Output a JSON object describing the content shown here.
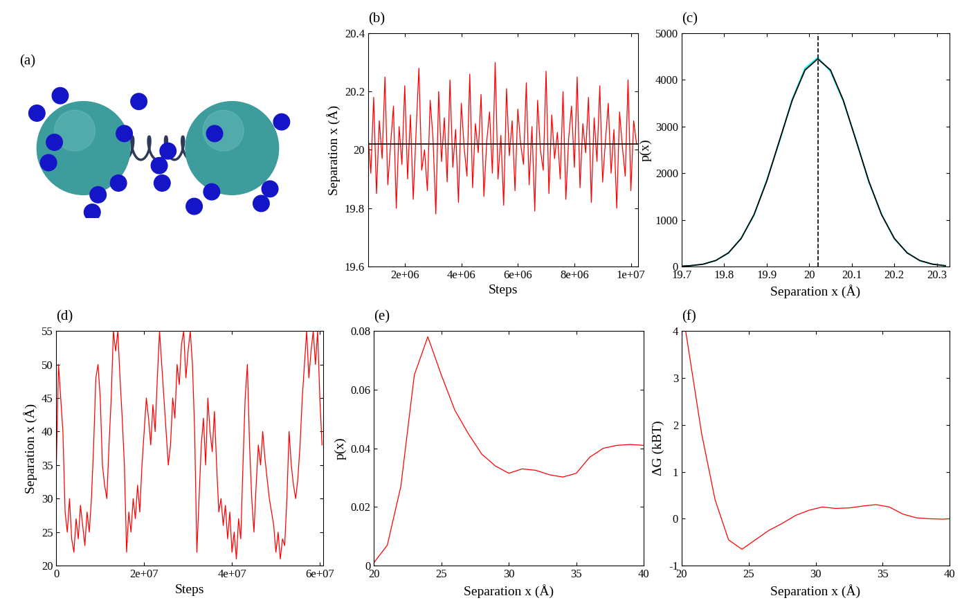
{
  "chart_data": [
    {
      "type": "diagram",
      "title": "(a)"
    },
    {
      "type": "line",
      "title": "(b)",
      "x_label": "Steps",
      "y_label": "Separation x (Å)",
      "xlim": [
        700000,
        10250000
      ],
      "xticks": [
        {
          "value": 2000000,
          "label": "2e+06"
        },
        {
          "value": 4000000,
          "label": "4e+06"
        },
        {
          "value": 6000000,
          "label": "6e+06"
        },
        {
          "value": 8000000,
          "label": "8e+06"
        },
        {
          "value": 10000000,
          "label": "1e+07"
        }
      ],
      "ylim": [
        19.6,
        20.4
      ],
      "yticks": [
        19.6,
        19.8,
        20,
        20.2,
        20.4
      ],
      "hline": 20.02,
      "color": "#ff0000",
      "x": [
        700000,
        800000,
        900000,
        1000000,
        1100000,
        1200000,
        1300000,
        1400000,
        1500000,
        1600000,
        1700000,
        1800000,
        1900000,
        2000000,
        2100000,
        2200000,
        2300000,
        2400000,
        2500000,
        2600000,
        2700000,
        2800000,
        2900000,
        3000000,
        3100000,
        3200000,
        3300000,
        3400000,
        3500000,
        3600000,
        3700000,
        3800000,
        3900000,
        4000000,
        4100000,
        4200000,
        4300000,
        4400000,
        4500000,
        4600000,
        4700000,
        4800000,
        4900000,
        5000000,
        5100000,
        5200000,
        5300000,
        5400000,
        5500000,
        5600000,
        5700000,
        5800000,
        5900000,
        6000000,
        6100000,
        6200000,
        6300000,
        6400000,
        6500000,
        6600000,
        6700000,
        6800000,
        6900000,
        7000000,
        7100000,
        7200000,
        7300000,
        7400000,
        7500000,
        7600000,
        7700000,
        7800000,
        7900000,
        8000000,
        8100000,
        8200000,
        8300000,
        8400000,
        8500000,
        8600000,
        8700000,
        8800000,
        8900000,
        9000000,
        9100000,
        9200000,
        9300000,
        9400000,
        9500000,
        9600000,
        9700000,
        9800000,
        9900000,
        10000000,
        10100000,
        10200000
      ],
      "values": [
        20.05,
        19.92,
        20.18,
        19.85,
        20.1,
        19.97,
        20.25,
        19.88,
        20.02,
        20.15,
        19.8,
        20.08,
        19.95,
        20.22,
        19.9,
        20.12,
        19.83,
        20.06,
        20.28,
        19.93,
        20.0,
        19.86,
        20.17,
        20.04,
        19.78,
        20.2,
        19.96,
        20.11,
        19.89,
        20.24,
        19.94,
        20.07,
        19.82,
        20.16,
        20.01,
        19.91,
        20.26,
        19.87,
        20.09,
        19.99,
        20.19,
        19.84,
        20.03,
        20.13,
        19.92,
        20.3,
        19.9,
        20.05,
        19.81,
        20.21,
        19.98,
        20.1,
        19.86,
        20.14,
        20.02,
        19.95,
        20.23,
        19.88,
        20.08,
        19.79,
        20.17,
        20.0,
        19.93,
        20.27,
        19.85,
        20.12,
        19.97,
        20.06,
        19.9,
        20.2,
        19.83,
        20.04,
        20.15,
        19.94,
        20.25,
        19.87,
        20.09,
        19.99,
        20.18,
        19.82,
        20.11,
        19.96,
        20.22,
        19.89,
        20.03,
        20.16,
        19.92,
        20.07,
        19.8,
        20.13,
        20.01,
        19.91,
        20.24,
        19.86,
        20.1,
        20.02
      ]
    },
    {
      "type": "line",
      "title": "(c)",
      "x_label": "Separation x (Å)",
      "y_label": "p(x)",
      "xlim": [
        19.7,
        20.33
      ],
      "xticks": [
        19.7,
        19.8,
        19.9,
        20,
        20.1,
        20.2,
        20.3
      ],
      "ylim": [
        0,
        5000
      ],
      "yticks": [
        0,
        1000,
        2000,
        3000,
        4000,
        5000
      ],
      "vline": 20.02,
      "x": [
        19.7,
        19.72,
        19.75,
        19.78,
        19.81,
        19.84,
        19.87,
        19.9,
        19.93,
        19.96,
        19.99,
        20.02,
        20.05,
        20.08,
        20.11,
        20.14,
        20.17,
        20.2,
        20.23,
        20.26,
        20.29,
        20.32
      ],
      "series": [
        {
          "color": "#00ffff",
          "values": [
            6,
            19,
            45,
            131,
            288,
            610,
            1095,
            1850,
            2680,
            3590,
            4250,
            4480,
            4180,
            3540,
            2720,
            1810,
            1120,
            590,
            300,
            122,
            52,
            15
          ]
        },
        {
          "color": "#000000",
          "values": [
            7,
            17,
            49,
            127,
            292,
            602,
            1110,
            1829,
            2700,
            3564,
            4210,
            4450,
            4210,
            3564,
            2700,
            1829,
            1110,
            602,
            292,
            127,
            49,
            17
          ]
        }
      ]
    },
    {
      "type": "line",
      "title": "(d)",
      "x_label": "Steps",
      "y_label": "Separation x (Å)",
      "xlim": [
        0,
        60800000
      ],
      "xticks": [
        0,
        {
          "value": 20000000,
          "label": "2e+07"
        },
        {
          "value": 40000000,
          "label": "4e+07"
        },
        {
          "value": 60000000,
          "label": "6e+07"
        }
      ],
      "ylim": [
        20,
        55
      ],
      "yticks": [
        20,
        25,
        30,
        35,
        40,
        45,
        50,
        55
      ],
      "color": "#ff0000",
      "x": [
        0,
        500000,
        1000000,
        1500000,
        2000000,
        2500000,
        3000000,
        3500000,
        4000000,
        4500000,
        5000000,
        5500000,
        6000000,
        6500000,
        7000000,
        7500000,
        8000000,
        8500000,
        9000000,
        9500000,
        10000000,
        10500000,
        11000000,
        11500000,
        12000000,
        12500000,
        13000000,
        13500000,
        14000000,
        14500000,
        15000000,
        15500000,
        16000000,
        16500000,
        17000000,
        17500000,
        18000000,
        18500000,
        19000000,
        19500000,
        20000000,
        20500000,
        21000000,
        21500000,
        22000000,
        22500000,
        23000000,
        23500000,
        24000000,
        24500000,
        25000000,
        25500000,
        26000000,
        26500000,
        27000000,
        27500000,
        28000000,
        28500000,
        29000000,
        29500000,
        30000000,
        30500000,
        31000000,
        31500000,
        32000000,
        32500000,
        33000000,
        33500000,
        34000000,
        34500000,
        35000000,
        35500000,
        36000000,
        36500000,
        37000000,
        37500000,
        38000000,
        38500000,
        39000000,
        39500000,
        40000000,
        40500000,
        41000000,
        41500000,
        42000000,
        42500000,
        43000000,
        43500000,
        44000000,
        44500000,
        45000000,
        45500000,
        46000000,
        46500000,
        47000000,
        47500000,
        48000000,
        48500000,
        49000000,
        49500000,
        50000000,
        50500000,
        51000000,
        51500000,
        52000000,
        52500000,
        53000000,
        53500000,
        54000000,
        54500000,
        55000000,
        55500000,
        56000000,
        56500000,
        57000000,
        57500000,
        58000000,
        58500000,
        59000000,
        59500000,
        60000000,
        60500000
      ],
      "values": [
        35,
        50,
        45,
        40,
        28,
        25,
        30,
        24,
        22,
        27,
        24,
        29,
        26,
        23,
        28,
        25,
        30,
        38,
        48,
        50,
        45,
        35,
        32,
        30,
        38,
        45,
        55,
        52,
        55,
        48,
        42,
        35,
        22,
        28,
        25,
        30,
        27,
        32,
        28,
        35,
        40,
        45,
        42,
        38,
        44,
        40,
        48,
        55,
        50,
        45,
        40,
        35,
        38,
        45,
        42,
        50,
        47,
        53,
        55,
        48,
        52,
        55,
        50,
        40,
        22,
        30,
        38,
        42,
        35,
        45,
        40,
        37,
        43,
        35,
        28,
        30,
        26,
        29,
        24,
        28,
        22,
        25,
        21,
        27,
        24,
        35,
        45,
        50,
        38,
        30,
        25,
        32,
        38,
        35,
        40,
        36,
        33,
        30,
        28,
        26,
        22,
        25,
        21,
        24,
        23,
        30,
        40,
        35,
        32,
        30,
        33,
        38,
        45,
        50,
        55,
        48,
        52,
        55,
        50,
        55,
        45,
        38
      ]
    },
    {
      "type": "line",
      "title": "(e)",
      "x_label": "Separation x (Å)",
      "y_label": "p(x)",
      "xlim": [
        20,
        40
      ],
      "xticks": [
        20,
        25,
        30,
        35,
        40
      ],
      "ylim": [
        0,
        0.08
      ],
      "yticks": [
        0,
        0.02,
        0.04,
        0.06,
        0.08
      ],
      "color": "#ff0000",
      "x": [
        20,
        21,
        22,
        23,
        24,
        25,
        26,
        27,
        28,
        29,
        30,
        31,
        32,
        33,
        34,
        35,
        36,
        37,
        38,
        39,
        40
      ],
      "values": [
        0.001,
        0.007,
        0.027,
        0.065,
        0.078,
        0.065,
        0.053,
        0.045,
        0.038,
        0.034,
        0.0315,
        0.033,
        0.0325,
        0.031,
        0.0302,
        0.0315,
        0.037,
        0.04,
        0.041,
        0.0413,
        0.041
      ]
    },
    {
      "type": "line",
      "title": "(f)",
      "x_label": "Separation x (Å)",
      "y_label": "ΔG (kBT)",
      "xlim": [
        20,
        40
      ],
      "xticks": [
        20,
        25,
        30,
        35,
        40
      ],
      "ylim": [
        -1,
        4
      ],
      "yticks": [
        -1,
        0,
        1,
        2,
        3,
        4
      ],
      "color": "#ff0000",
      "x": [
        20.3,
        21.5,
        22.5,
        23.5,
        24.5,
        25.5,
        26.5,
        27.5,
        28.5,
        29.5,
        30.5,
        31.5,
        32.5,
        33.5,
        34.5,
        35.5,
        36.5,
        37.5,
        38.5,
        39.5,
        40
      ],
      "values": [
        4.0,
        1.8,
        0.4,
        -0.45,
        -0.65,
        -0.45,
        -0.25,
        -0.1,
        0.07,
        0.18,
        0.25,
        0.22,
        0.23,
        0.27,
        0.3,
        0.25,
        0.1,
        0.02,
        0.0,
        -0.01,
        0.0
      ]
    }
  ]
}
